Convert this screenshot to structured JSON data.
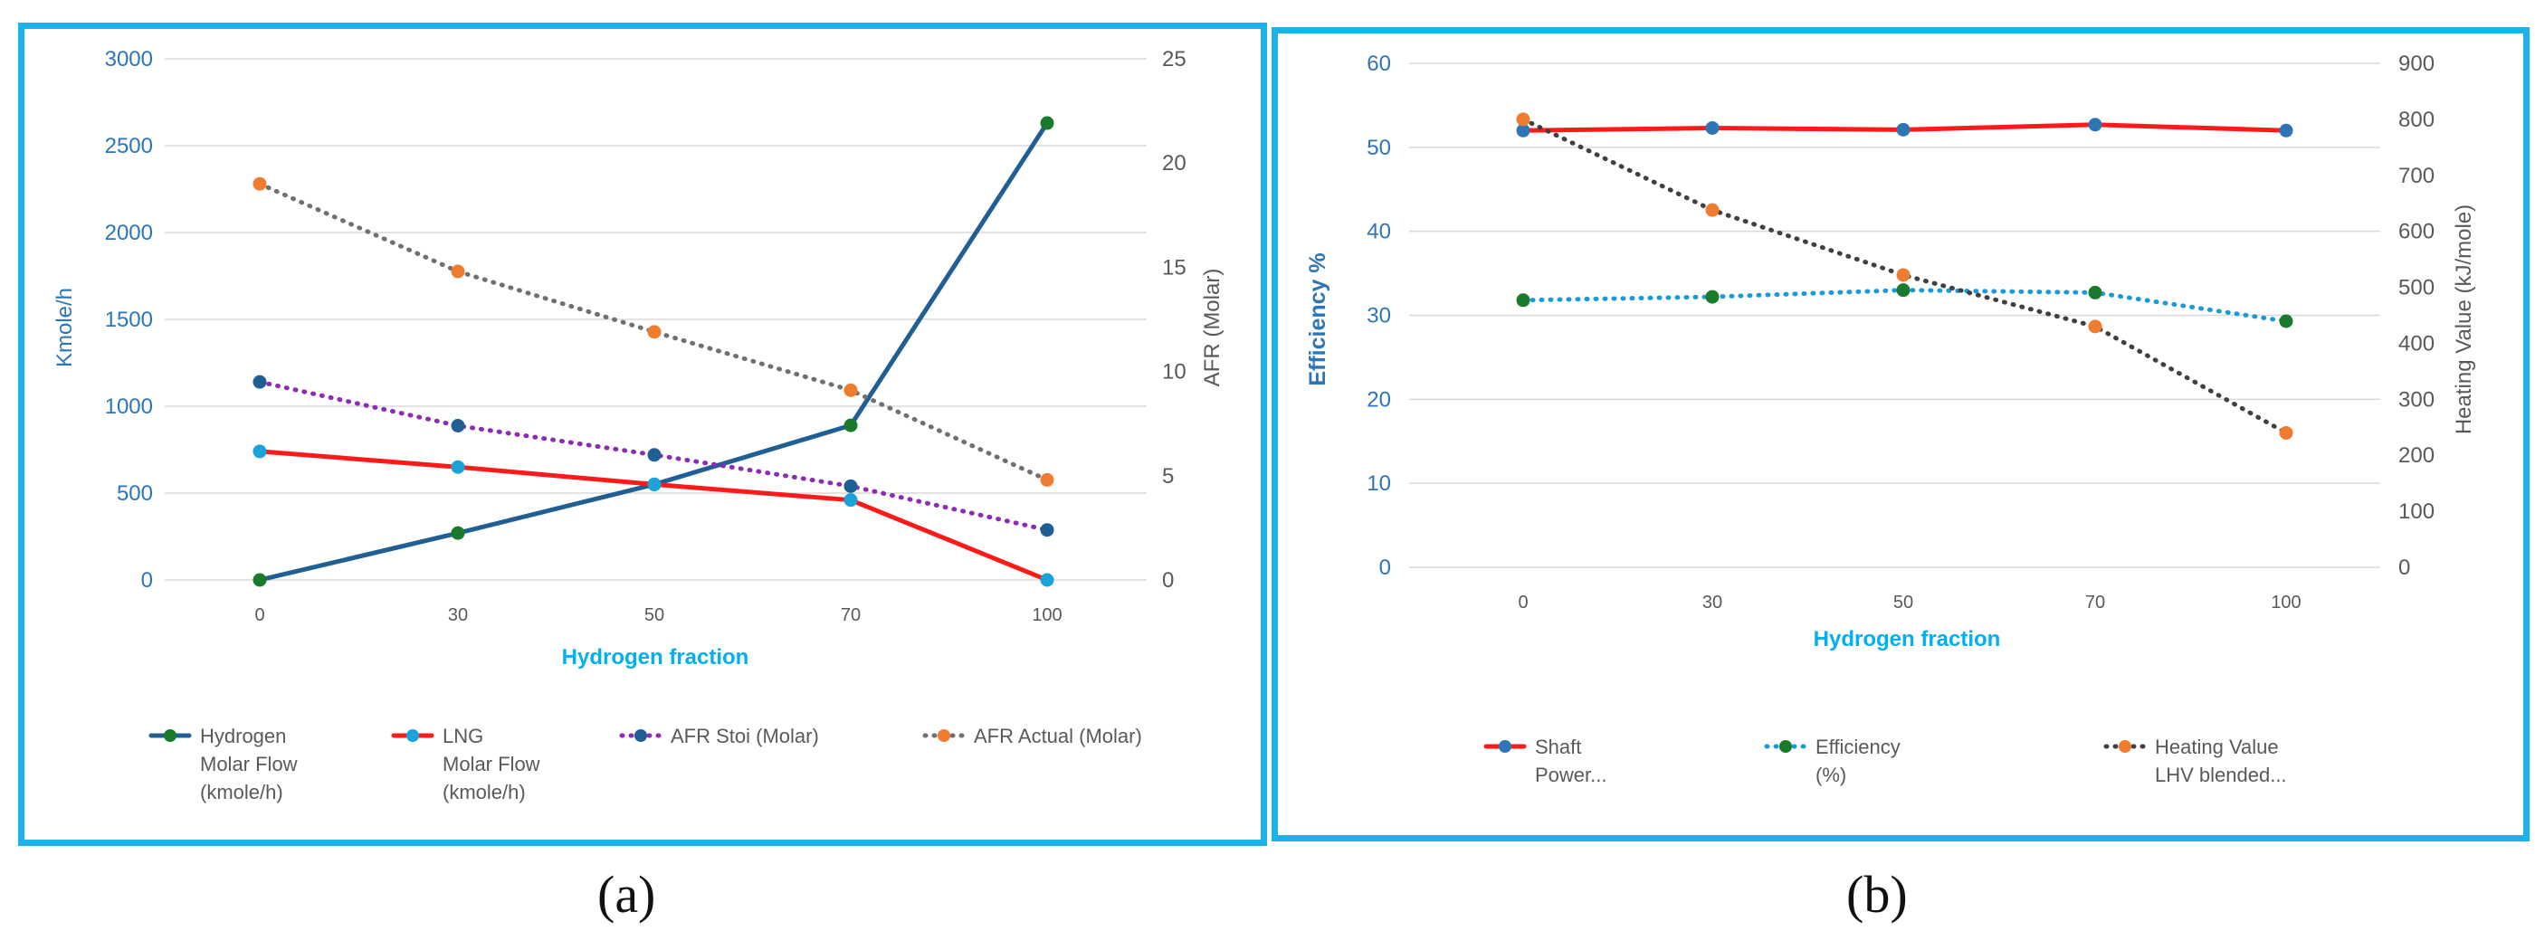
{
  "captions": {
    "a": "(a)",
    "b": "(b)"
  },
  "chart_data": [
    {
      "id": "a",
      "type": "line",
      "title": "",
      "xlabel": "Hydrogen fraction",
      "ylabel": "Kmole/h",
      "y2label": "AFR (Molar)",
      "categories": [
        "0",
        "30",
        "50",
        "70",
        "100"
      ],
      "ylim": [
        0,
        3000
      ],
      "y2lim": [
        0,
        25
      ],
      "yticks": [
        "0",
        "500",
        "1000",
        "1500",
        "2000",
        "2500",
        "3000"
      ],
      "y2ticks": [
        "0",
        "5",
        "10",
        "15",
        "20",
        "25"
      ],
      "grid": true,
      "legend_position": "bottom",
      "series": [
        {
          "name": "Hydrogen Molar Flow (kmole/h)",
          "legend_lines": [
            "Hydrogen",
            "Molar Flow",
            "(kmole/h)"
          ],
          "axis": "left",
          "color": "#1f5f94",
          "marker": "#1a7a2c",
          "dash": "solid",
          "values": [
            0,
            270,
            550,
            890,
            2630
          ]
        },
        {
          "name": "LNG Molar Flow (kmole/h)",
          "legend_lines": [
            "LNG",
            "Molar Flow",
            "(kmole/h)"
          ],
          "axis": "left",
          "color": "#ff1a1a",
          "marker": "#1aa3d9",
          "dash": "solid",
          "values": [
            740,
            650,
            550,
            460,
            0
          ]
        },
        {
          "name": "AFR Stoi (Molar)",
          "legend_lines": [
            "AFR Stoi (Molar)"
          ],
          "axis": "right",
          "color": "#8f2bb3",
          "marker": "#1f5f94",
          "dash": "dotted",
          "values": [
            9.5,
            7.4,
            6.0,
            4.5,
            2.4
          ]
        },
        {
          "name": "AFR Actual (Molar)",
          "legend_lines": [
            "AFR Actual (Molar)"
          ],
          "axis": "right",
          "color": "#707070",
          "marker": "#f07c30",
          "dash": "dotted",
          "values": [
            19.0,
            14.8,
            11.9,
            9.1,
            4.8
          ]
        }
      ]
    },
    {
      "id": "b",
      "type": "line",
      "title": "",
      "xlabel": "Hydrogen fraction",
      "ylabel": "Efficiency %",
      "y2label": "Heating Value (kJ/mole)",
      "categories": [
        "0",
        "30",
        "50",
        "70",
        "100"
      ],
      "ylim": [
        0,
        60
      ],
      "y2lim": [
        0,
        900
      ],
      "yticks": [
        "0",
        "10",
        "20",
        "30",
        "40",
        "50",
        "60"
      ],
      "y2ticks": [
        "0",
        "100",
        "200",
        "300",
        "400",
        "500",
        "600",
        "700",
        "800",
        "900"
      ],
      "grid": true,
      "legend_position": "bottom",
      "series": [
        {
          "name": "Shaft Power...",
          "legend_lines": [
            "Shaft",
            "Power..."
          ],
          "axis": "left",
          "color": "#ff1a1a",
          "marker": "#2e75b6",
          "dash": "solid",
          "values": [
            52,
            52.3,
            52.1,
            52.7,
            52
          ]
        },
        {
          "name": "Efficiency (%)",
          "legend_lines": [
            "Efficiency",
            "(%)"
          ],
          "axis": "left",
          "color": "#1a9ad9",
          "marker": "#1a7a2c",
          "dash": "dotted",
          "values": [
            31.8,
            32.2,
            33,
            32.7,
            29.3
          ]
        },
        {
          "name": "Heating Value LHV blended...",
          "legend_lines": [
            "Heating Value",
            "LHV blended..."
          ],
          "axis": "right",
          "color": "#404040",
          "marker": "#f07c30",
          "dash": "dotted",
          "values": [
            800,
            638,
            522,
            430,
            240
          ]
        }
      ]
    }
  ]
}
